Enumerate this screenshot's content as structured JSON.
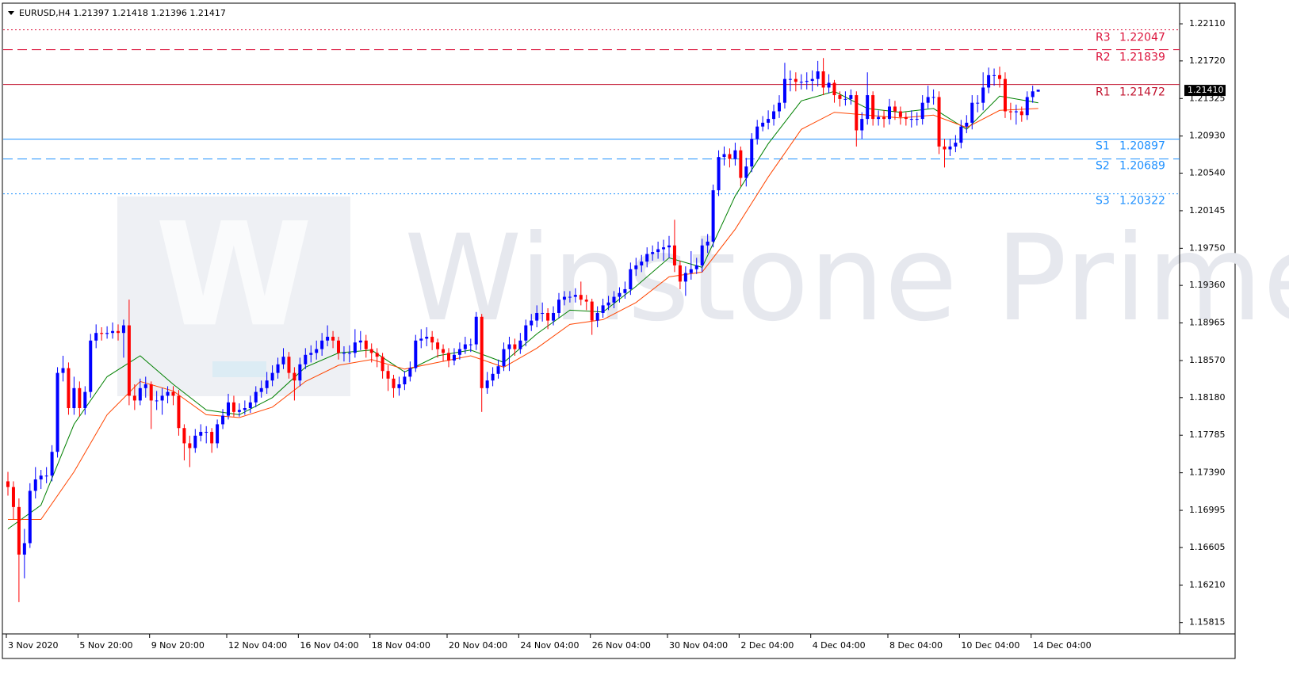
{
  "chart_data": {
    "type": "candlestick",
    "title": "EURUSD,H4  1.21397 1.21418 1.21396 1.21417",
    "watermark": "Winstone Prime",
    "logo_letter": "W",
    "up_color": "#0000ff",
    "down_color": "#ff0000",
    "ylim": [
      1.15696,
      1.22327
    ],
    "yticks": [
      {
        "value": 1.2211,
        "label": "1.22110"
      },
      {
        "value": 1.2172,
        "label": "1.21720"
      },
      1.21325,
      {
        "value": 1.2093,
        "label": "1.20930"
      },
      {
        "value": 1.2054,
        "label": "1.20540"
      },
      1.20145,
      {
        "value": 1.1975,
        "label": "1.19750"
      },
      {
        "value": 1.1936,
        "label": "1.19360"
      },
      1.18965,
      {
        "value": 1.1857,
        "label": "1.18570"
      },
      {
        "value": 1.1818,
        "label": "1.18180"
      },
      1.17785,
      {
        "value": 1.1739,
        "label": "1.17390"
      },
      1.16995,
      1.16605,
      {
        "value": 1.1621,
        "label": "1.16210"
      },
      1.15815
    ],
    "bid": {
      "value": 1.2141,
      "label": "1.21410"
    },
    "pivots": [
      {
        "name": "R3",
        "value": 1.22047,
        "color": "#dc143c",
        "style": "dotted"
      },
      {
        "name": "R2",
        "value": 1.21839,
        "color": "#dc143c",
        "style": "dashed"
      },
      {
        "name": "R1",
        "value": 1.21472,
        "color": "#c0102c",
        "style": "solid"
      },
      {
        "name": "S1",
        "value": 1.20897,
        "color": "#1e90ff",
        "style": "solid"
      },
      {
        "name": "S2",
        "value": 1.20689,
        "color": "#1e90ff",
        "style": "dashed"
      },
      {
        "name": "S3",
        "value": 1.20322,
        "color": "#1e90ff",
        "style": "dotted"
      }
    ],
    "categories": [
      "3 Nov 2020",
      null,
      null,
      null,
      null,
      null,
      null,
      null,
      null,
      null,
      null,
      null,
      null,
      "5 Nov 20:00",
      null,
      null,
      null,
      null,
      null,
      null,
      null,
      null,
      null,
      null,
      null,
      null,
      "9 Nov 20:00",
      null,
      null,
      null,
      null,
      null,
      null,
      null,
      null,
      null,
      null,
      null,
      null,
      null,
      "12 Nov 04:00",
      null,
      null,
      null,
      null,
      null,
      null,
      null,
      null,
      null,
      null,
      null,
      null,
      "16 Nov 04:00",
      null,
      null,
      null,
      null,
      null,
      null,
      null,
      null,
      null,
      null,
      null,
      null,
      "18 Nov 04:00",
      null,
      null,
      null,
      null,
      null,
      null,
      null,
      null,
      null,
      null,
      null,
      null,
      null,
      "20 Nov 04:00",
      null,
      null,
      null,
      null,
      null,
      null,
      null,
      null,
      null,
      null,
      null,
      null,
      "24 Nov 04:00",
      null,
      null,
      null,
      null,
      null,
      null,
      null,
      null,
      null,
      null,
      null,
      null,
      "26 Nov 04:00",
      null,
      null,
      null,
      null,
      null,
      null,
      null,
      null,
      null,
      null,
      null,
      null,
      null,
      "30 Nov 04:00",
      null,
      null,
      null,
      null,
      null,
      null,
      null,
      null,
      null,
      null,
      null,
      null,
      "2 Dec 04:00",
      null,
      null,
      null,
      null,
      null,
      null,
      null,
      null,
      null,
      null,
      null,
      null,
      "4 Dec 04:00",
      null,
      null,
      null,
      null,
      null,
      null,
      null,
      null,
      null,
      null,
      null,
      null,
      null,
      "8 Dec 04:00",
      null,
      null,
      null,
      null,
      null,
      null,
      null,
      null,
      null,
      null,
      null,
      null,
      "10 Dec 04:00",
      null,
      null,
      null,
      null,
      null,
      null,
      null,
      null,
      null,
      null,
      null,
      null,
      "14 Dec 04:00",
      null
    ],
    "open": [
      1.173,
      1.1724,
      1.1703,
      1.1653,
      1.1665,
      1.172,
      1.1732,
      1.1736,
      1.1736,
      1.1761,
      1.1844,
      1.1849,
      1.1807,
      1.1828,
      1.1807,
      1.1824,
      1.1878,
      1.1886,
      1.1885,
      1.1886,
      1.1888,
      1.1886,
      1.1894,
      1.182,
      1.1815,
      1.1828,
      1.1832,
      1.1815,
      1.1815,
      1.182,
      1.1824,
      1.182,
      1.1786,
      1.177,
      1.1765,
      1.1778,
      1.1782,
      1.1782,
      1.177,
      1.179,
      1.1799,
      1.1813,
      1.1803,
      1.1805,
      1.1807,
      1.1813,
      1.1824,
      1.1828,
      1.1836,
      1.1844,
      1.1853,
      1.1861,
      1.1844,
      1.1836,
      1.1853,
      1.1863,
      1.1865,
      1.1869,
      1.1878,
      1.1882,
      1.1878,
      1.1865,
      1.1865,
      1.1865,
      1.1876,
      1.1878,
      1.1869,
      1.1865,
      1.1861,
      1.1846,
      1.1838,
      1.1828,
      1.1832,
      1.184,
      1.1849,
      1.1878,
      1.188,
      1.1882,
      1.1876,
      1.1869,
      1.1865,
      1.1857,
      1.1863,
      1.1869,
      1.1874,
      1.1874,
      1.1903,
      1.1828,
      1.1836,
      1.1843,
      1.1851,
      1.1869,
      1.1874,
      1.1869,
      1.1878,
      1.1894,
      1.1899,
      1.1907,
      1.1907,
      1.1899,
      1.1907,
      1.1921,
      1.1924,
      1.1924,
      1.1926,
      1.1921,
      1.1919,
      1.1899,
      1.1907,
      1.1915,
      1.1918,
      1.1924,
      1.1928,
      1.1932,
      1.1953,
      1.1957,
      1.1961,
      1.1969,
      1.1971,
      1.1974,
      1.1976,
      1.1978,
      1.1957,
      1.194,
      1.1949,
      1.1953,
      1.1957,
      1.1978,
      1.1982,
      1.2036,
      1.2071,
      1.2074,
      1.2069,
      1.2078,
      1.2049,
      1.2061,
      1.209,
      1.2103,
      1.2107,
      1.2111,
      1.2119,
      1.2128,
      1.2153,
      1.2153,
      1.215,
      1.215,
      1.2151,
      1.2153,
      1.2161,
      1.2144,
      1.2149,
      1.2136,
      1.2132,
      1.2132,
      1.2136,
      1.2099,
      1.2111,
      1.2136,
      1.2111,
      1.2113,
      1.2111,
      1.2124,
      1.2119,
      1.2113,
      1.2111,
      1.2111,
      1.2111,
      1.2128,
      1.2134,
      1.2134,
      1.2082,
      1.2079,
      1.2082,
      1.2086,
      1.2103,
      1.2107,
      1.2128,
      1.2128,
      1.2144,
      1.2157,
      1.2157,
      1.2153,
      1.2119,
      1.2118,
      1.2119,
      1.2115,
      1.2134,
      1.21397
    ],
    "high": [
      1.174,
      1.173,
      1.1712,
      1.168,
      1.1728,
      1.1745,
      1.1742,
      1.1745,
      1.1768,
      1.185,
      1.1862,
      1.1855,
      1.184,
      1.1835,
      1.183,
      1.1885,
      1.1895,
      1.1892,
      1.1893,
      1.1897,
      1.1895,
      1.19,
      1.1921,
      1.1832,
      1.1838,
      1.184,
      1.1835,
      1.1825,
      1.1828,
      1.183,
      1.183,
      1.1826,
      1.179,
      1.1778,
      1.1785,
      1.179,
      1.1788,
      1.1786,
      1.1795,
      1.1806,
      1.1822,
      1.182,
      1.1812,
      1.1815,
      1.182,
      1.183,
      1.1836,
      1.1845,
      1.1852,
      1.186,
      1.187,
      1.1866,
      1.185,
      1.186,
      1.187,
      1.1873,
      1.1878,
      1.1886,
      1.1894,
      1.1888,
      1.1882,
      1.1872,
      1.1873,
      1.189,
      1.1888,
      1.1884,
      1.1875,
      1.187,
      1.1865,
      1.1852,
      1.1842,
      1.184,
      1.1846,
      1.1856,
      1.1884,
      1.189,
      1.1892,
      1.1888,
      1.188,
      1.1874,
      1.187,
      1.187,
      1.1876,
      1.1882,
      1.188,
      1.1908,
      1.1906,
      1.1845,
      1.185,
      1.1858,
      1.1876,
      1.1882,
      1.188,
      1.1886,
      1.19,
      1.1906,
      1.1915,
      1.1918,
      1.1912,
      1.1914,
      1.1928,
      1.193,
      1.193,
      1.1933,
      1.194,
      1.1926,
      1.1922,
      1.1914,
      1.1922,
      1.1925,
      1.193,
      1.1934,
      1.194,
      1.196,
      1.1965,
      1.1968,
      1.1976,
      1.1978,
      1.1982,
      1.1984,
      1.1988,
      1.2005,
      1.1962,
      1.1956,
      1.1972,
      1.1965,
      1.1985,
      1.199,
      1.2042,
      1.2078,
      1.2082,
      1.208,
      1.2086,
      1.2082,
      1.207,
      1.2096,
      1.211,
      1.2114,
      1.212,
      1.2126,
      1.2136,
      1.217,
      1.2162,
      1.216,
      1.2158,
      1.216,
      1.2162,
      1.2172,
      1.2175,
      1.2158,
      1.2152,
      1.214,
      1.214,
      1.2142,
      1.214,
      1.2118,
      1.216,
      1.214,
      1.212,
      1.212,
      1.2132,
      1.213,
      1.2124,
      1.2118,
      1.212,
      1.2118,
      1.2136,
      1.2146,
      1.2142,
      1.214,
      1.209,
      1.209,
      1.2094,
      1.211,
      1.2115,
      1.2136,
      1.2136,
      1.216,
      1.2165,
      1.2164,
      1.2166,
      1.216,
      1.2128,
      1.2126,
      1.2124,
      1.214,
      1.2146,
      1.21418
    ],
    "low": [
      1.1715,
      1.169,
      1.1603,
      1.1628,
      1.166,
      1.1712,
      1.1722,
      1.1728,
      1.173,
      1.1755,
      1.1835,
      1.18,
      1.18,
      1.1798,
      1.18,
      1.1818,
      1.187,
      1.1878,
      1.188,
      1.188,
      1.1878,
      1.186,
      1.181,
      1.1805,
      1.181,
      1.1818,
      1.1785,
      1.1805,
      1.18,
      1.1812,
      1.181,
      1.1778,
      1.1752,
      1.1745,
      1.176,
      1.1772,
      1.177,
      1.176,
      1.1765,
      1.1785,
      1.1795,
      1.1798,
      1.1798,
      1.18,
      1.1802,
      1.1808,
      1.1818,
      1.1822,
      1.183,
      1.1838,
      1.1848,
      1.1838,
      1.1815,
      1.183,
      1.1848,
      1.1855,
      1.1858,
      1.1862,
      1.1872,
      1.187,
      1.1858,
      1.1856,
      1.1855,
      1.186,
      1.1868,
      1.186,
      1.1855,
      1.185,
      1.1838,
      1.1825,
      1.1818,
      1.182,
      1.1826,
      1.1835,
      1.1845,
      1.187,
      1.1872,
      1.1868,
      1.186,
      1.1856,
      1.185,
      1.1852,
      1.1858,
      1.1864,
      1.1866,
      1.1868,
      1.1803,
      1.1822,
      1.183,
      1.1838,
      1.1846,
      1.1846,
      1.1862,
      1.1864,
      1.1872,
      1.1888,
      1.1892,
      1.1898,
      1.189,
      1.1894,
      1.1902,
      1.1915,
      1.1918,
      1.1918,
      1.1915,
      1.191,
      1.1884,
      1.1892,
      1.1902,
      1.191,
      1.1912,
      1.1918,
      1.1922,
      1.1926,
      1.1946,
      1.195,
      1.1955,
      1.1962,
      1.1964,
      1.1962,
      1.1965,
      1.195,
      1.1932,
      1.1925,
      1.1942,
      1.1948,
      1.195,
      1.197,
      1.1976,
      1.203,
      1.2062,
      1.206,
      1.2062,
      1.204,
      1.204,
      1.2055,
      1.2084,
      1.2098,
      1.21,
      1.2104,
      1.2112,
      1.2122,
      1.214,
      1.214,
      1.2142,
      1.2142,
      1.214,
      1.2145,
      1.2136,
      1.2138,
      1.2128,
      1.2124,
      1.2125,
      1.2126,
      1.2082,
      1.209,
      1.2105,
      1.2104,
      1.2104,
      1.2102,
      1.2105,
      1.211,
      1.2105,
      1.2104,
      1.2102,
      1.2104,
      1.2105,
      1.2122,
      1.2126,
      1.2074,
      1.206,
      1.2072,
      1.2076,
      1.208,
      1.2096,
      1.21,
      1.2118,
      1.212,
      1.2138,
      1.2146,
      1.2144,
      1.2112,
      1.211,
      1.2105,
      1.2108,
      1.211,
      1.2128,
      1.21396
    ],
    "close": [
      1.1724,
      1.1703,
      1.1653,
      1.1665,
      1.172,
      1.1732,
      1.1736,
      1.1736,
      1.1761,
      1.1844,
      1.1849,
      1.1807,
      1.1828,
      1.1807,
      1.1824,
      1.1878,
      1.1886,
      1.1885,
      1.1886,
      1.1888,
      1.1886,
      1.1894,
      1.182,
      1.1815,
      1.1828,
      1.1832,
      1.1815,
      1.1815,
      1.182,
      1.1824,
      1.182,
      1.1786,
      1.177,
      1.1765,
      1.1778,
      1.1782,
      1.1782,
      1.177,
      1.179,
      1.1799,
      1.1813,
      1.1803,
      1.1805,
      1.1807,
      1.1813,
      1.1824,
      1.1828,
      1.1836,
      1.1844,
      1.1853,
      1.1861,
      1.1844,
      1.1836,
      1.1853,
      1.1863,
      1.1865,
      1.1869,
      1.1878,
      1.1882,
      1.1878,
      1.1865,
      1.1865,
      1.1865,
      1.1876,
      1.1878,
      1.1869,
      1.1865,
      1.1861,
      1.1846,
      1.1838,
      1.1828,
      1.1832,
      1.184,
      1.1849,
      1.1878,
      1.188,
      1.1882,
      1.1876,
      1.1869,
      1.1865,
      1.1857,
      1.1863,
      1.1869,
      1.1874,
      1.1874,
      1.1903,
      1.1828,
      1.1836,
      1.1843,
      1.1851,
      1.1869,
      1.1874,
      1.1869,
      1.1878,
      1.1894,
      1.1899,
      1.1907,
      1.1907,
      1.1899,
      1.1907,
      1.1921,
      1.1924,
      1.1924,
      1.1926,
      1.1921,
      1.1919,
      1.1899,
      1.1907,
      1.1915,
      1.1918,
      1.1924,
      1.1928,
      1.1932,
      1.1953,
      1.1957,
      1.1961,
      1.1969,
      1.1971,
      1.1974,
      1.1976,
      1.1978,
      1.1957,
      1.194,
      1.1949,
      1.1953,
      1.1957,
      1.1978,
      1.1982,
      1.2036,
      1.2071,
      1.2074,
      1.2069,
      1.2078,
      1.2049,
      1.2061,
      1.209,
      1.2103,
      1.2107,
      1.2111,
      1.2119,
      1.2128,
      1.2153,
      1.2153,
      1.215,
      1.215,
      1.2151,
      1.2153,
      1.2161,
      1.2144,
      1.2149,
      1.2136,
      1.2132,
      1.2132,
      1.2136,
      1.2099,
      1.2111,
      1.2136,
      1.2111,
      1.2113,
      1.2111,
      1.2124,
      1.2119,
      1.2113,
      1.2111,
      1.2111,
      1.2111,
      1.2128,
      1.2134,
      1.2134,
      1.2082,
      1.2079,
      1.2082,
      1.2086,
      1.2103,
      1.2107,
      1.2128,
      1.2128,
      1.2144,
      1.2157,
      1.2157,
      1.2153,
      1.2119,
      1.2118,
      1.2119,
      1.2115,
      1.2134,
      1.214,
      1.21417
    ],
    "ma_series": [
      {
        "color": "#008000",
        "x": [
          0,
          6,
          12,
          18,
          24,
          30,
          36,
          42,
          48,
          54,
          60,
          66,
          72,
          78,
          84,
          90,
          96,
          102,
          108,
          114,
          120,
          126,
          132,
          138,
          144,
          150,
          156,
          162,
          168,
          174,
          180,
          187
        ],
        "values": [
          1.168,
          1.1705,
          1.179,
          1.184,
          1.1862,
          1.1832,
          1.1805,
          1.18,
          1.1818,
          1.185,
          1.1865,
          1.1868,
          1.1845,
          1.1862,
          1.1868,
          1.1855,
          1.1885,
          1.191,
          1.1908,
          1.1935,
          1.1965,
          1.1955,
          1.203,
          1.2085,
          1.213,
          1.214,
          1.2122,
          1.2118,
          1.2122,
          1.21,
          1.2135,
          1.2128
        ]
      },
      {
        "color": "#ff4500",
        "x": [
          0,
          6,
          12,
          18,
          24,
          30,
          36,
          42,
          48,
          54,
          60,
          66,
          72,
          78,
          84,
          90,
          96,
          102,
          108,
          114,
          120,
          126,
          132,
          138,
          144,
          150,
          156,
          162,
          168,
          174,
          180,
          187
        ],
        "values": [
          1.169,
          1.169,
          1.174,
          1.18,
          1.1835,
          1.1825,
          1.18,
          1.1797,
          1.1808,
          1.1835,
          1.1852,
          1.1858,
          1.1848,
          1.1855,
          1.1862,
          1.185,
          1.187,
          1.1895,
          1.19,
          1.1918,
          1.1945,
          1.195,
          1.1995,
          1.205,
          1.21,
          1.2118,
          1.2115,
          1.2112,
          1.2115,
          1.2102,
          1.212,
          1.2122
        ]
      }
    ]
  }
}
